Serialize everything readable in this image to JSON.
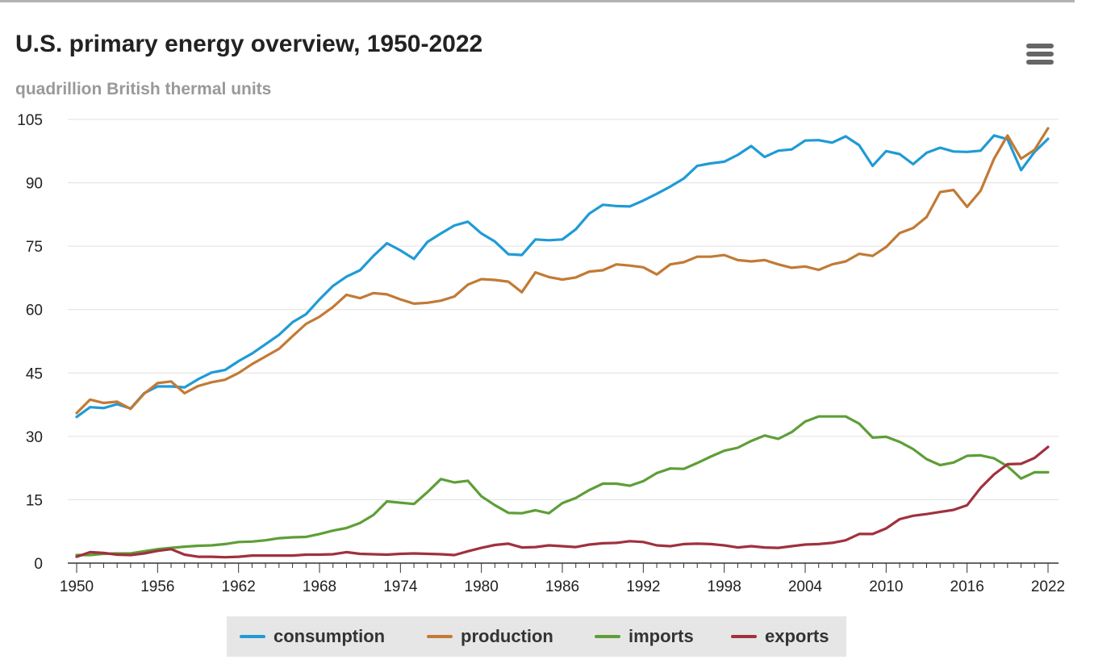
{
  "title": "U.S. primary energy overview, 1950-2022",
  "subtitle": "quadrillion British thermal units",
  "menu": {
    "icon": "hamburger-menu-icon"
  },
  "colors": {
    "consumption": "#1f9bd6",
    "production": "#c27a35",
    "imports": "#5e9e37",
    "exports": "#a0313e",
    "grid": "#e0e0e0",
    "axis": "#333333"
  },
  "legend": [
    {
      "name": "consumption",
      "color": "#1f9bd6"
    },
    {
      "name": "production",
      "color": "#c27a35"
    },
    {
      "name": "imports",
      "color": "#5e9e37"
    },
    {
      "name": "exports",
      "color": "#a0313e"
    }
  ],
  "chart_data": {
    "type": "line",
    "title": "U.S. primary energy overview, 1950-2022",
    "subtitle": "quadrillion British thermal units",
    "xlabel": "",
    "ylabel": "",
    "xlim": [
      1950,
      2022
    ],
    "ylim": [
      0,
      105
    ],
    "yticks": [
      0,
      15,
      30,
      45,
      60,
      75,
      90,
      105
    ],
    "xticks": [
      1950,
      1956,
      1962,
      1968,
      1974,
      1980,
      1986,
      1992,
      1998,
      2004,
      2010,
      2016,
      2022
    ],
    "grid": true,
    "legend_position": "bottom",
    "x": [
      1950,
      1951,
      1952,
      1953,
      1954,
      1955,
      1956,
      1957,
      1958,
      1959,
      1960,
      1961,
      1962,
      1963,
      1964,
      1965,
      1966,
      1967,
      1968,
      1969,
      1970,
      1971,
      1972,
      1973,
      1974,
      1975,
      1976,
      1977,
      1978,
      1979,
      1980,
      1981,
      1982,
      1983,
      1984,
      1985,
      1986,
      1987,
      1988,
      1989,
      1990,
      1991,
      1992,
      1993,
      1994,
      1995,
      1996,
      1997,
      1998,
      1999,
      2000,
      2001,
      2002,
      2003,
      2004,
      2005,
      2006,
      2007,
      2008,
      2009,
      2010,
      2011,
      2012,
      2013,
      2014,
      2015,
      2016,
      2017,
      2018,
      2019,
      2020,
      2021,
      2022
    ],
    "series": [
      {
        "name": "consumption",
        "color": "#1f9bd6",
        "values": [
          34.6,
          36.9,
          36.7,
          37.6,
          36.6,
          40.2,
          41.8,
          41.8,
          41.6,
          43.5,
          45.1,
          45.7,
          47.8,
          49.6,
          51.8,
          54.0,
          57.0,
          58.9,
          62.4,
          65.6,
          67.8,
          69.3,
          72.7,
          75.7,
          74.0,
          72.0,
          76.0,
          78.0,
          79.9,
          80.8,
          78.0,
          76.1,
          73.1,
          72.9,
          76.6,
          76.4,
          76.6,
          79.0,
          82.7,
          84.8,
          84.5,
          84.4,
          85.8,
          87.4,
          89.1,
          91.0,
          94.0,
          94.6,
          95.0,
          96.6,
          98.7,
          96.1,
          97.6,
          97.9,
          100.0,
          100.1,
          99.5,
          101.0,
          98.9,
          94.0,
          97.5,
          96.8,
          94.4,
          97.1,
          98.3,
          97.4,
          97.3,
          97.6,
          101.2,
          100.3,
          93.0,
          97.3,
          100.4
        ]
      },
      {
        "name": "production",
        "color": "#c27a35",
        "values": [
          35.5,
          38.7,
          37.9,
          38.2,
          36.5,
          40.1,
          42.6,
          43.0,
          40.2,
          41.9,
          42.8,
          43.4,
          45.0,
          47.1,
          48.9,
          50.7,
          53.7,
          56.6,
          58.3,
          60.6,
          63.5,
          62.7,
          63.9,
          63.6,
          62.4,
          61.4,
          61.6,
          62.1,
          63.1,
          65.9,
          67.2,
          67.0,
          66.6,
          64.1,
          68.8,
          67.7,
          67.1,
          67.6,
          69.0,
          69.3,
          70.7,
          70.4,
          70.0,
          68.3,
          70.7,
          71.2,
          72.5,
          72.5,
          72.9,
          71.7,
          71.4,
          71.7,
          70.7,
          69.9,
          70.2,
          69.4,
          70.7,
          71.4,
          73.2,
          72.7,
          74.8,
          78.1,
          79.3,
          81.9,
          87.8,
          88.3,
          84.3,
          88.1,
          95.7,
          101.2,
          95.7,
          97.8,
          102.9
        ]
      },
      {
        "name": "imports",
        "color": "#5e9e37",
        "values": [
          1.9,
          1.9,
          2.2,
          2.3,
          2.3,
          2.8,
          3.3,
          3.6,
          3.9,
          4.1,
          4.2,
          4.5,
          5.0,
          5.1,
          5.4,
          5.9,
          6.1,
          6.2,
          6.9,
          7.7,
          8.3,
          9.5,
          11.4,
          14.6,
          14.3,
          14.0,
          16.8,
          19.9,
          19.1,
          19.5,
          15.8,
          13.7,
          11.9,
          11.8,
          12.5,
          11.8,
          14.2,
          15.4,
          17.3,
          18.8,
          18.8,
          18.3,
          19.4,
          21.3,
          22.4,
          22.3,
          23.7,
          25.2,
          26.6,
          27.3,
          28.9,
          30.2,
          29.4,
          31.0,
          33.5,
          34.7,
          34.7,
          34.7,
          33.0,
          29.7,
          29.9,
          28.7,
          27.0,
          24.6,
          23.2,
          23.8,
          25.4,
          25.5,
          24.8,
          22.9,
          20.0,
          21.5,
          21.5
        ]
      },
      {
        "name": "exports",
        "color": "#a0313e",
        "values": [
          1.5,
          2.6,
          2.4,
          2.0,
          1.9,
          2.3,
          2.9,
          3.3,
          2.0,
          1.5,
          1.5,
          1.4,
          1.5,
          1.8,
          1.8,
          1.8,
          1.8,
          2.0,
          2.0,
          2.1,
          2.6,
          2.2,
          2.1,
          2.0,
          2.2,
          2.3,
          2.2,
          2.1,
          1.9,
          2.8,
          3.6,
          4.3,
          4.6,
          3.7,
          3.8,
          4.2,
          4.0,
          3.8,
          4.4,
          4.7,
          4.8,
          5.2,
          5.0,
          4.2,
          4.0,
          4.5,
          4.6,
          4.5,
          4.2,
          3.7,
          4.0,
          3.7,
          3.6,
          4.0,
          4.4,
          4.5,
          4.8,
          5.4,
          6.9,
          6.9,
          8.2,
          10.4,
          11.2,
          11.6,
          12.1,
          12.6,
          13.7,
          17.8,
          21.0,
          23.4,
          23.5,
          24.9,
          27.5
        ]
      }
    ]
  }
}
